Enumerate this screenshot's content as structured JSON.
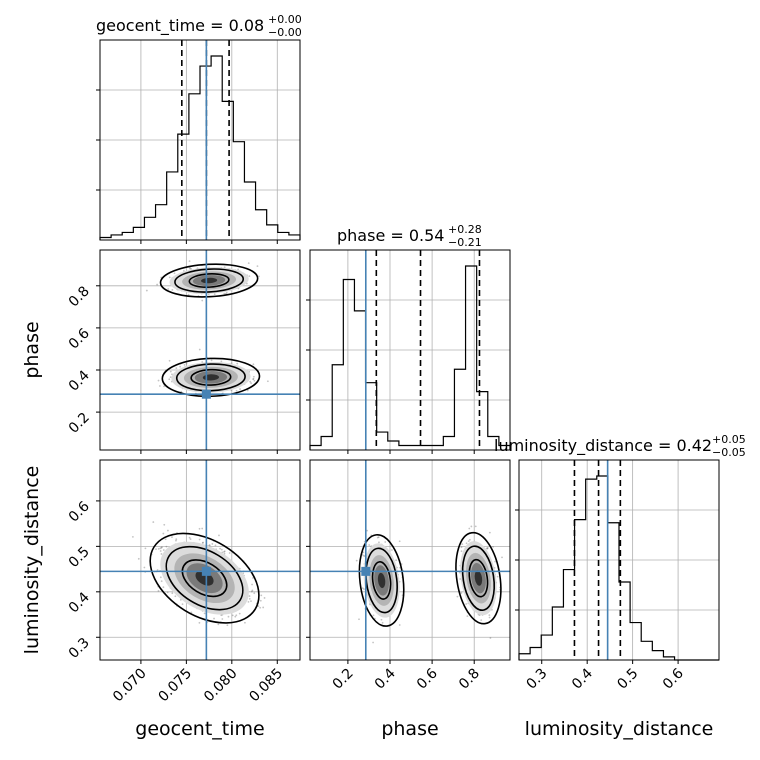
{
  "chart_data": {
    "type": "corner",
    "parameters": [
      "geocent_time",
      "phase",
      "luminosity_distance"
    ],
    "truths": {
      "geocent_time": 0.0772,
      "phase": 0.285,
      "luminosity_distance": 0.445
    },
    "truth_color": "#4682b4",
    "panel_titles": {
      "geocent_time": {
        "text": "geocent_time = 0.08",
        "sup": "+0.00",
        "sub": "−0.00"
      },
      "phase": {
        "text": "phase = 0.54",
        "sup": "+0.28",
        "sub": "−0.21"
      },
      "luminosity_distance": {
        "text": "luminosity_distance = 0.42",
        "sup": "+0.05",
        "sub": "−0.05"
      }
    },
    "xlabels": {
      "geocent_time": "geocent_time",
      "phase": "phase",
      "luminosity_distance": "luminosity_distance"
    },
    "ylabels": {
      "phase": "phase",
      "luminosity_distance": "luminosity_distance"
    },
    "axis_ranges": {
      "geocent_time": [
        0.0655,
        0.0875
      ],
      "phase": [
        0.02,
        0.97
      ],
      "luminosity_distance": [
        0.25,
        0.69
      ]
    },
    "ticks": {
      "geocent_time": [
        "0.070",
        "0.075",
        "0.080",
        "0.085"
      ],
      "phase_x": [
        "0.2",
        "0.4",
        "0.6",
        "0.8"
      ],
      "phase_y": [
        "0.2",
        "0.4",
        "0.6",
        "0.8"
      ],
      "luminosity_distance_x": [
        "0.3",
        "0.4",
        "0.5",
        "0.6"
      ],
      "luminosity_distance_y": [
        "0.3",
        "0.4",
        "0.5",
        "0.6"
      ]
    },
    "quantiles": {
      "geocent_time": [
        0.0745,
        0.0772,
        0.0797
      ],
      "phase": [
        0.335,
        0.545,
        0.825
      ],
      "luminosity_distance": [
        0.372,
        0.425,
        0.473
      ]
    },
    "histograms": {
      "geocent_time": [
        1,
        2,
        3,
        5,
        9,
        14,
        27,
        42,
        58,
        69,
        73,
        55,
        39,
        23,
        12,
        6,
        3,
        2
      ],
      "phase": [
        1,
        3,
        19,
        38,
        31,
        15,
        4,
        2,
        1,
        1,
        1,
        1,
        3,
        18,
        41,
        13,
        3,
        1
      ],
      "luminosity_distance": [
        2,
        4,
        8,
        17,
        29,
        45,
        58,
        59,
        44,
        25,
        12,
        6,
        3,
        1,
        0,
        0,
        0,
        0
      ]
    },
    "grid": true
  }
}
